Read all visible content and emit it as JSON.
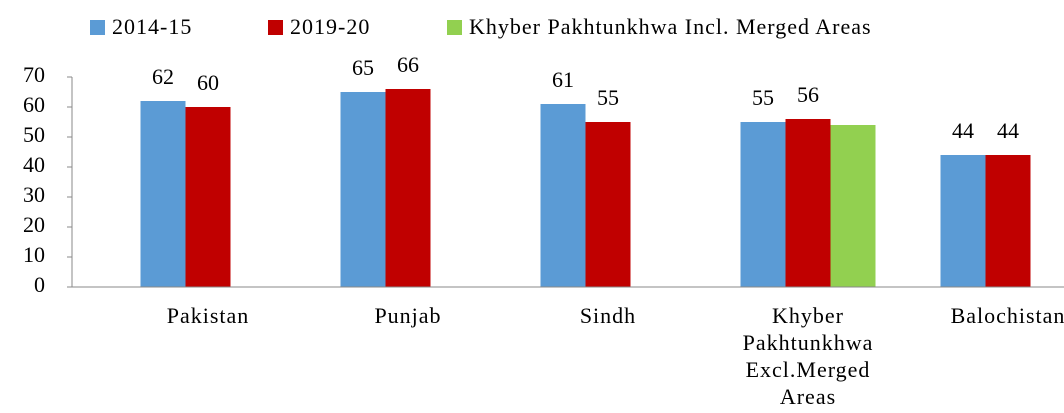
{
  "chart_data": {
    "type": "bar",
    "categories": [
      "Pakistan",
      "Punjab",
      "Sindh",
      "Khyber Pakhtunkhwa Excl.Merged Areas",
      "Balochistan"
    ],
    "series": [
      {
        "name": "2014-15",
        "color": "#5b9bd5",
        "values": [
          62,
          65,
          61,
          55,
          44
        ]
      },
      {
        "name": "2019-20",
        "color": "#c00000",
        "values": [
          60,
          66,
          55,
          56,
          44
        ]
      },
      {
        "name": "Khyber Pakhtunkhwa Incl. Merged Areas",
        "color": "#92d050",
        "values": [
          null,
          null,
          null,
          54,
          null
        ]
      }
    ],
    "data_labels": [
      true,
      true,
      false
    ],
    "ylim": [
      0,
      70
    ],
    "yticks": [
      0,
      10,
      20,
      30,
      40,
      50,
      60,
      70
    ],
    "grid": false,
    "legend": "top"
  }
}
